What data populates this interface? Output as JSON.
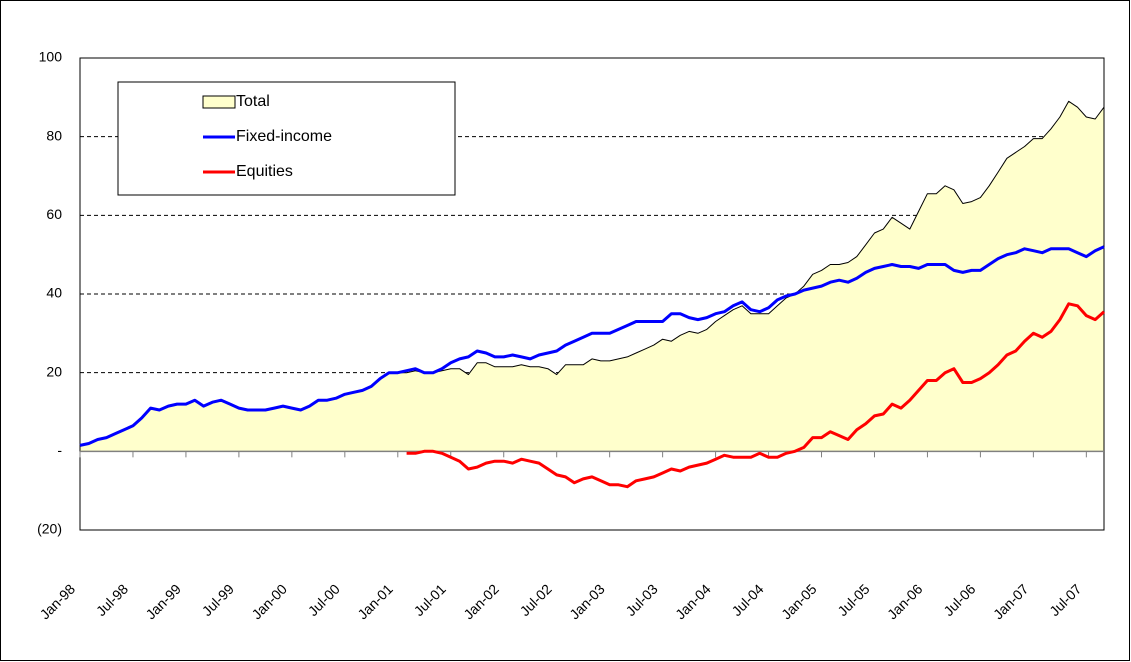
{
  "chart_data": {
    "type": "line",
    "categories": [
      "Jan-98",
      null,
      null,
      null,
      null,
      null,
      "Jul-98",
      null,
      null,
      null,
      null,
      null,
      "Jan-99",
      null,
      null,
      null,
      null,
      null,
      "Jul-99",
      null,
      null,
      null,
      null,
      null,
      "Jan-00",
      null,
      null,
      null,
      null,
      null,
      "Jul-00",
      null,
      null,
      null,
      null,
      null,
      "Jan-01",
      null,
      null,
      null,
      null,
      null,
      "Jul-01",
      null,
      null,
      null,
      null,
      null,
      "Jan-02",
      null,
      null,
      null,
      null,
      null,
      "Jul-02",
      null,
      null,
      null,
      null,
      null,
      "Jan-03",
      null,
      null,
      null,
      null,
      null,
      "Jul-03",
      null,
      null,
      null,
      null,
      null,
      "Jan-04",
      null,
      null,
      null,
      null,
      null,
      "Jul-04",
      null,
      null,
      null,
      null,
      null,
      "Jan-05",
      null,
      null,
      null,
      null,
      null,
      "Jul-05",
      null,
      null,
      null,
      null,
      null,
      "Jan-06",
      null,
      null,
      null,
      null,
      null,
      "Jul-06",
      null,
      null,
      null,
      null,
      null,
      "Jan-07",
      null,
      null,
      null,
      null,
      null,
      "Jul-07",
      null,
      null
    ],
    "series": [
      {
        "name": "Total",
        "color": "#ffffcc",
        "fill": "area",
        "values": [
          1.5,
          2,
          3,
          3.5,
          4.5,
          5.5,
          6.5,
          8.5,
          11,
          10.5,
          11.5,
          12,
          12,
          13,
          11.5,
          12.5,
          13,
          12,
          11,
          10.5,
          10.5,
          10.5,
          11,
          11.5,
          11,
          10.5,
          11.5,
          13,
          13,
          13.5,
          14.5,
          15,
          15.5,
          16.5,
          18.5,
          20,
          20,
          20,
          20.5,
          20,
          20,
          20.5,
          21,
          21,
          19.5,
          22.5,
          22.5,
          21.5,
          21.5,
          21.5,
          22,
          21.5,
          21.5,
          21,
          19.5,
          22,
          22,
          22,
          23.5,
          23,
          23,
          23.5,
          24,
          25,
          26,
          27,
          28.5,
          28,
          29.5,
          30.5,
          30,
          31,
          33,
          34.5,
          36,
          37,
          35,
          35,
          35,
          37,
          39,
          40,
          42,
          45,
          46,
          47.5,
          47.5,
          48,
          49.5,
          52.5,
          55.5,
          56.5,
          59.5,
          58,
          56.5,
          61,
          65.5,
          65.5,
          67.5,
          66.5,
          63,
          63.5,
          64.5,
          67.5,
          71,
          74.5,
          76,
          77.5,
          79.5,
          79.5,
          82,
          85,
          89,
          87.5,
          85,
          84.5,
          87.5
        ]
      },
      {
        "name": "Fixed-income",
        "color": "#0000ff",
        "values": [
          1.5,
          2,
          3,
          3.5,
          4.5,
          5.5,
          6.5,
          8.5,
          11,
          10.5,
          11.5,
          12,
          12,
          13,
          11.5,
          12.5,
          13,
          12,
          11,
          10.5,
          10.5,
          10.5,
          11,
          11.5,
          11,
          10.5,
          11.5,
          13,
          13,
          13.5,
          14.5,
          15,
          15.5,
          16.5,
          18.5,
          20,
          20,
          20.5,
          21,
          20,
          20,
          21,
          22.5,
          23.5,
          24,
          25.5,
          25,
          24,
          24,
          24.5,
          24,
          23.5,
          24.5,
          25,
          25.5,
          27,
          28,
          29,
          30,
          30,
          30,
          31,
          32,
          33,
          33,
          33,
          33,
          35,
          35,
          34,
          33.5,
          34,
          35,
          35.5,
          37,
          38,
          36,
          35.5,
          36.5,
          38.5,
          39.5,
          40,
          41,
          41.5,
          42,
          43,
          43.5,
          43,
          44,
          45.5,
          46.5,
          47,
          47.5,
          47,
          47,
          46.5,
          47.5,
          47.5,
          47.5,
          46,
          45.5,
          46,
          46,
          47.5,
          49,
          50,
          50.5,
          51.5,
          51,
          50.5,
          51.5,
          51.5,
          51.5,
          50.5,
          49.5,
          51,
          52
        ]
      },
      {
        "name": "Equities",
        "color": "#ff0000",
        "values": [
          null,
          null,
          null,
          null,
          null,
          null,
          null,
          null,
          null,
          null,
          null,
          null,
          null,
          null,
          null,
          null,
          null,
          null,
          null,
          null,
          null,
          null,
          null,
          null,
          null,
          null,
          null,
          null,
          null,
          null,
          null,
          null,
          null,
          null,
          null,
          null,
          null,
          -0.5,
          -0.5,
          0,
          0,
          -0.5,
          -1.5,
          -2.5,
          -4.5,
          -4,
          -3,
          -2.5,
          -2.5,
          -3,
          -2,
          -2.5,
          -3,
          -4.5,
          -6,
          -6.5,
          -8,
          -7,
          -6.5,
          -7.5,
          -8.5,
          -8.5,
          -9,
          -7.5,
          -7,
          -6.5,
          -5.5,
          -4.5,
          -5,
          -4,
          -3.5,
          -3,
          -2,
          -1,
          -1.5,
          -1.5,
          -1.5,
          -0.5,
          -1.5,
          -1.5,
          -0.5,
          0,
          1,
          3.5,
          3.5,
          5,
          4,
          3,
          5.5,
          7,
          9,
          9.5,
          12,
          11,
          13,
          15.5,
          18,
          18,
          20,
          21,
          17.5,
          17.5,
          18.5,
          20,
          22,
          24.5,
          25.5,
          28,
          30,
          29,
          30.5,
          33.5,
          37.5,
          37,
          34.5,
          33.5,
          35.5
        ]
      }
    ],
    "ylim": [
      -20,
      100
    ],
    "yticks": [
      {
        "value": -20,
        "label": "(20)"
      },
      {
        "value": 0,
        "label": "-"
      },
      20,
      40,
      60,
      80,
      100
    ],
    "grid": true,
    "legend": "upper left"
  }
}
